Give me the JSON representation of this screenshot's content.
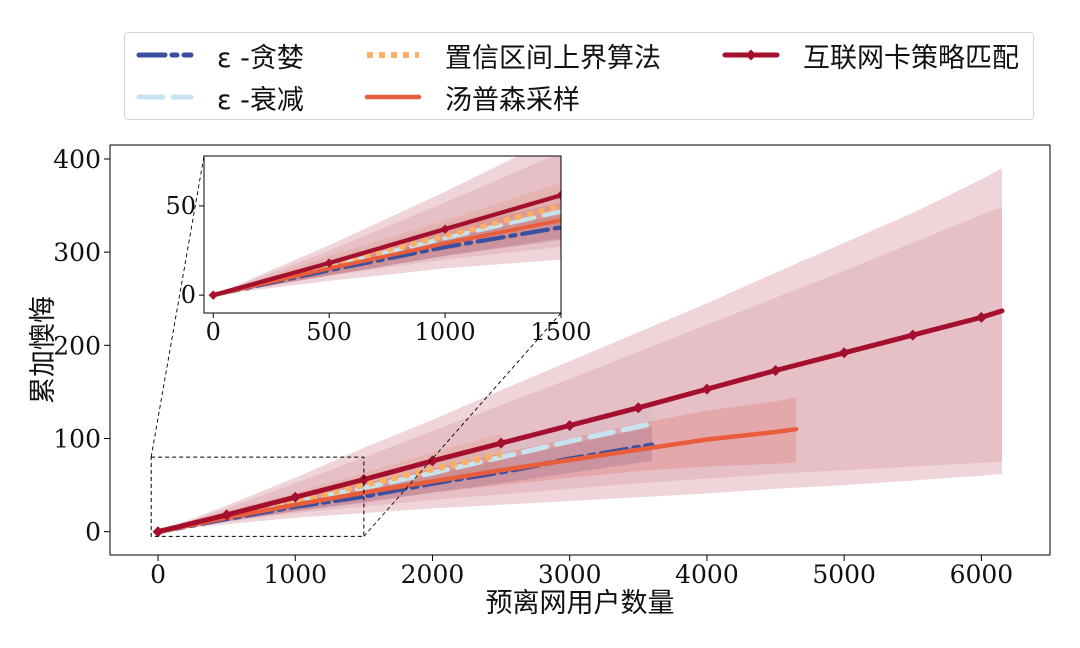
{
  "chart_data": {
    "type": "line",
    "xlabel": "预离网用户数量",
    "ylabel": "累加懊悔",
    "xlim": [
      -350,
      6500
    ],
    "ylim": [
      -25,
      415
    ],
    "xticks": [
      0,
      1000,
      2000,
      3000,
      4000,
      5000,
      6000
    ],
    "yticks": [
      0,
      100,
      200,
      300,
      400
    ],
    "grid": false,
    "legend_placement": "top",
    "series": [
      {
        "name": "ε -贪婪",
        "color": "#3a4fa0",
        "dash": "26 7 5 7",
        "width": 5,
        "x": [
          0,
          500,
          1000,
          1500,
          2000,
          2500,
          3000,
          3600
        ],
        "y": [
          0,
          14,
          27,
          38,
          52,
          64,
          78,
          93
        ],
        "band_lo": [
          0,
          11,
          22,
          31,
          42,
          52,
          63,
          76
        ],
        "band_hi": [
          0,
          17,
          32,
          45,
          62,
          77,
          94,
          112
        ]
      },
      {
        "name": "ε -衰减",
        "color": "#c8e3f0",
        "dash": "24 10",
        "width": 5,
        "x": [
          0,
          500,
          1000,
          1500,
          2000,
          2500,
          3000,
          3600
        ],
        "y": [
          0,
          16,
          32,
          47,
          63,
          80,
          97,
          116
        ],
        "band_lo": [
          0,
          12,
          25,
          36,
          48,
          60,
          72,
          86
        ],
        "band_hi": [
          0,
          20,
          40,
          58,
          78,
          98,
          119,
          140
        ]
      },
      {
        "name": "置信区间上界算法",
        "color": "#fcb062",
        "dash": "6 6",
        "width": 6,
        "x": [
          0,
          500,
          1000,
          1500,
          2000,
          2500
        ],
        "y": [
          0,
          17,
          33,
          50,
          67,
          83
        ],
        "band_lo": [
          0,
          12,
          25,
          37,
          50,
          62
        ],
        "band_hi": [
          0,
          22,
          42,
          63,
          85,
          105
        ]
      },
      {
        "name": "汤普森采样",
        "color": "#e85e3c",
        "dash": "",
        "width": 4.5,
        "x": [
          0,
          500,
          1000,
          1500,
          2000,
          2500,
          3000,
          3500,
          4000,
          4500,
          4650
        ],
        "y": [
          0,
          15,
          29,
          42,
          54,
          66,
          77,
          88,
          99,
          107,
          110
        ],
        "band_lo": [
          0,
          11,
          22,
          32,
          42,
          50,
          58,
          65,
          70,
          73,
          74
        ],
        "band_hi": [
          0,
          19,
          37,
          52,
          68,
          84,
          100,
          116,
          130,
          140,
          144
        ]
      },
      {
        "name": "互联网卡策略匹配",
        "color": "#a50f2e",
        "dash": "",
        "width": 5,
        "markers": true,
        "x": [
          0,
          500,
          1000,
          1500,
          2000,
          2500,
          3000,
          3500,
          4000,
          4500,
          5000,
          5500,
          6000,
          6150
        ],
        "y": [
          0,
          18,
          37,
          56,
          76,
          95,
          114,
          133,
          153,
          173,
          192,
          211,
          230,
          237
        ],
        "band_lo": [
          0,
          8,
          15,
          20,
          25,
          29,
          33,
          37,
          41,
          46,
          50,
          55,
          60,
          62
        ],
        "band_hi": [
          0,
          28,
          58,
          90,
          120,
          152,
          183,
          214,
          245,
          278,
          310,
          342,
          378,
          390
        ],
        "band2_lo": [
          0,
          11,
          20,
          27,
          34,
          40,
          46,
          52,
          57,
          62,
          66,
          70,
          74,
          75
        ],
        "band2_hi": [
          0,
          25,
          52,
          80,
          108,
          136,
          164,
          193,
          222,
          251,
          280,
          310,
          340,
          348
        ]
      }
    ],
    "inset": {
      "xlim": [
        -40,
        1500
      ],
      "ylim": [
        -10,
        78
      ],
      "xticks": [
        0,
        500,
        1000,
        1500
      ],
      "yticks": [
        0,
        50
      ],
      "zoom_box": {
        "x": [
          -50,
          1500
        ],
        "y": [
          -5,
          80
        ]
      }
    }
  }
}
